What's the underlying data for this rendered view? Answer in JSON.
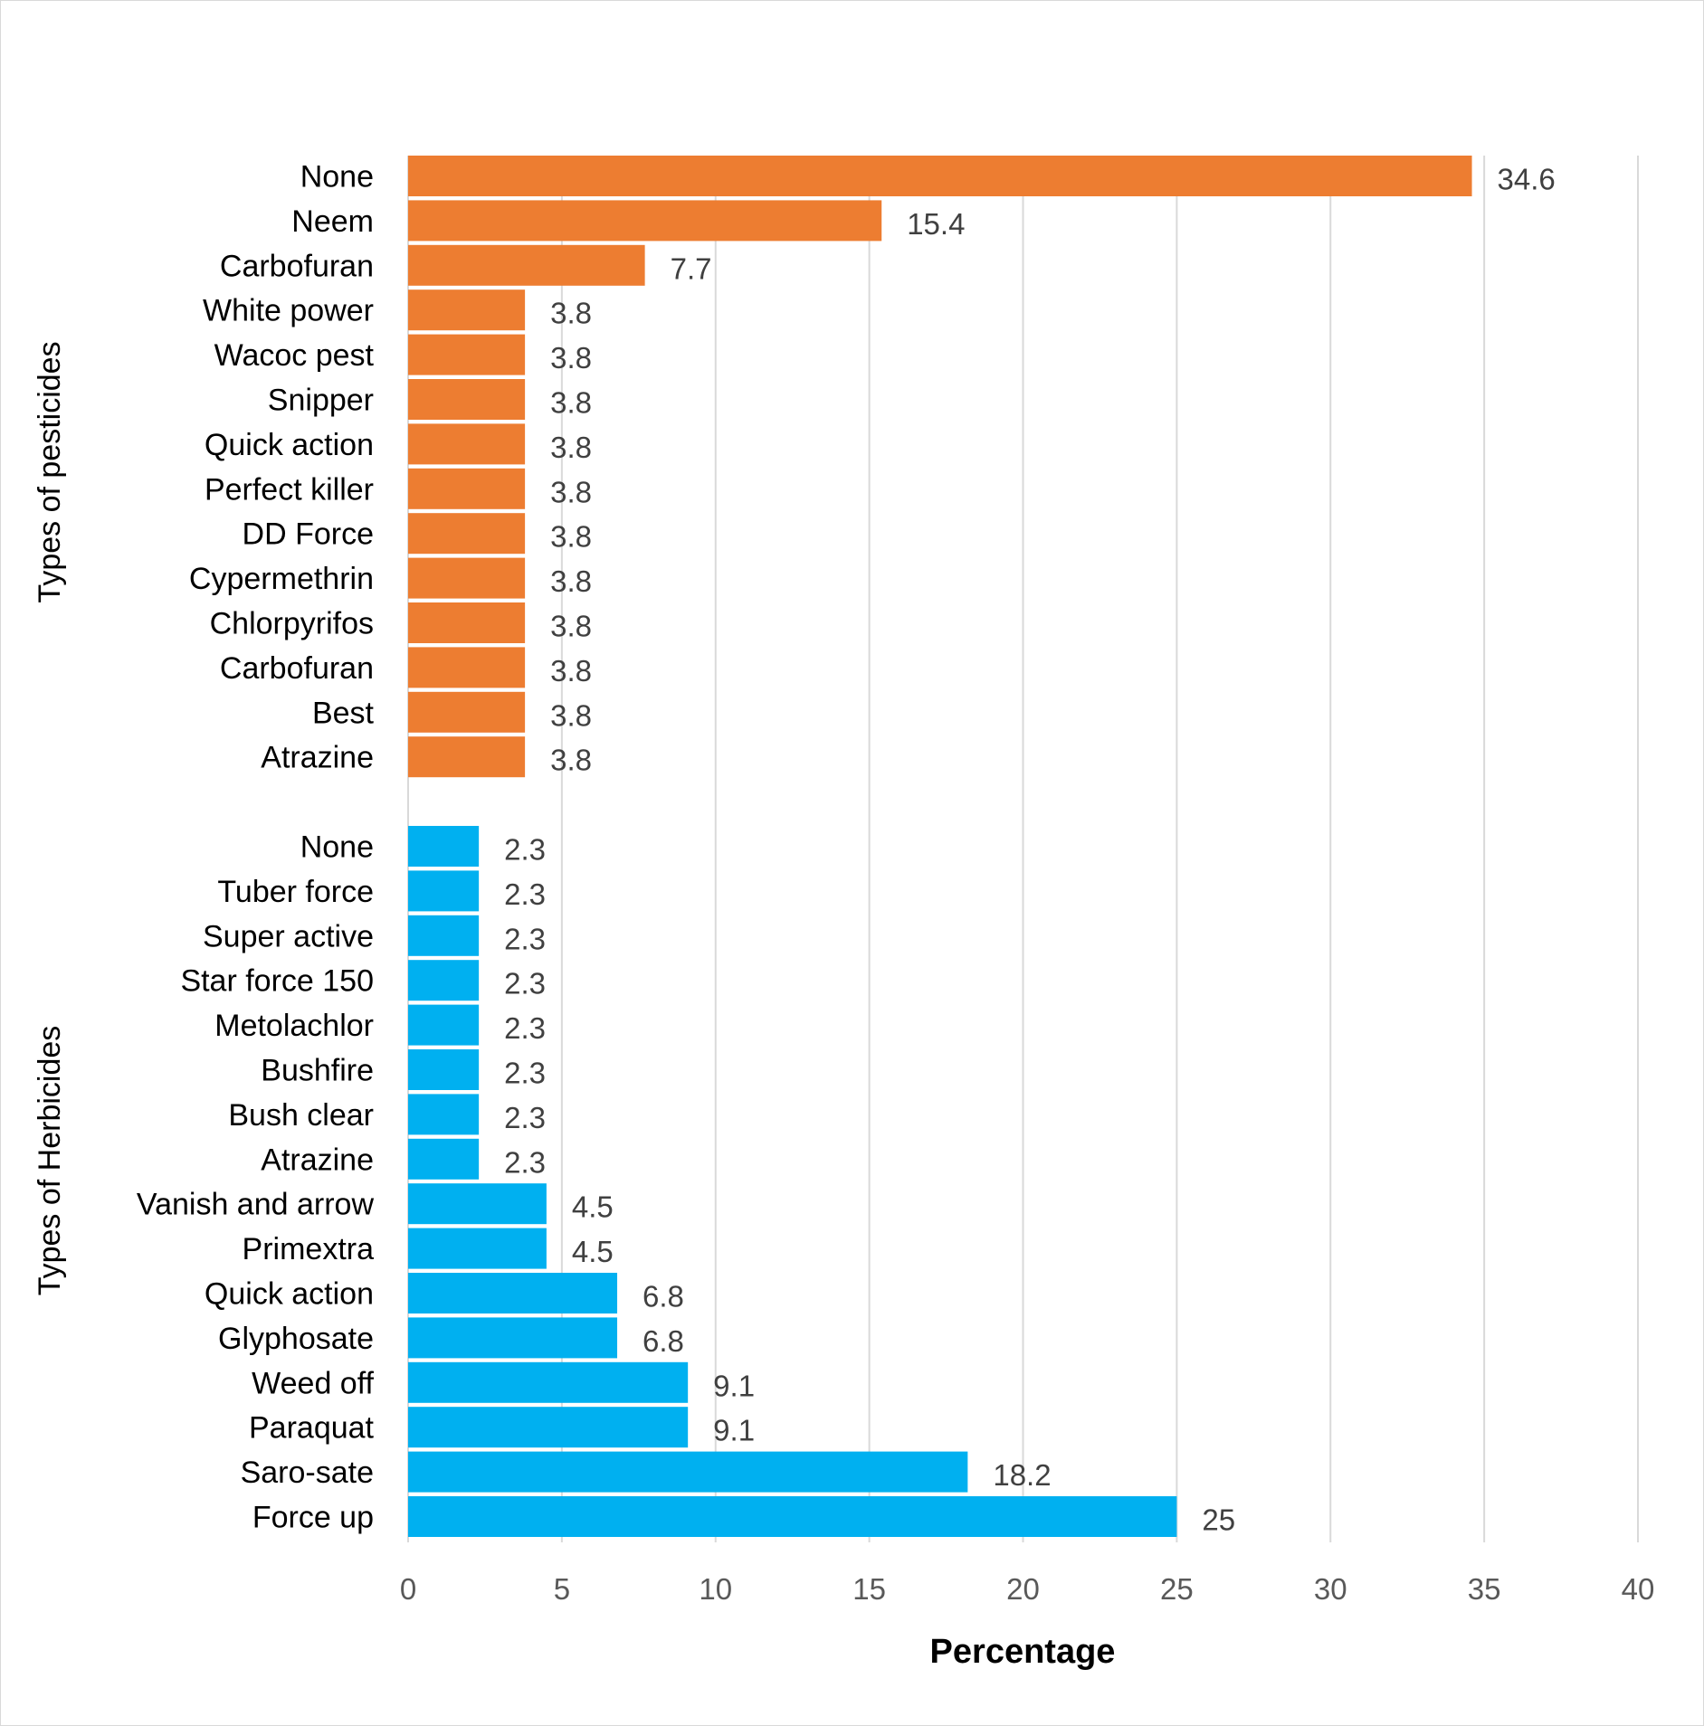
{
  "chart_data": {
    "type": "bar",
    "orientation": "horizontal",
    "xlabel": "Percentage",
    "xlim": [
      0,
      40
    ],
    "x_ticks": [
      "0",
      "5",
      "10",
      "15",
      "20",
      "25",
      "30",
      "35",
      "40"
    ],
    "grid": true,
    "groups": [
      {
        "name": "Types of pesticides",
        "color": "#ED7D31",
        "categories": [
          "None",
          "Neem",
          "Carbofuran",
          "White power",
          "Wacoc pest",
          "Snipper",
          "Quick action",
          "Perfect killer",
          "DD Force",
          "Cypermethrin",
          "Chlorpyrifos",
          "Carbofuran",
          "Best",
          "Atrazine"
        ],
        "values": [
          34.6,
          15.4,
          7.7,
          3.8,
          3.8,
          3.8,
          3.8,
          3.8,
          3.8,
          3.8,
          3.8,
          3.8,
          3.8,
          3.8
        ],
        "value_labels": [
          "34.6",
          "15.4",
          "7.7",
          "3.8",
          "3.8",
          "3.8",
          "3.8",
          "3.8",
          "3.8",
          "3.8",
          "3.8",
          "3.8",
          "3.8",
          "3.8"
        ]
      },
      {
        "name": "Types of Herbicides",
        "color": "#00B0F0",
        "categories": [
          "None",
          "Tuber force",
          "Super active",
          "Star force 150",
          "Metolachlor",
          "Bushfire",
          "Bush clear",
          "Atrazine",
          "Vanish and arrow",
          "Primextra",
          "Quick action",
          "Glyphosate",
          "Weed off",
          "Paraquat",
          "Saro-sate",
          "Force up"
        ],
        "values": [
          2.3,
          2.3,
          2.3,
          2.3,
          2.3,
          2.3,
          2.3,
          2.3,
          4.5,
          4.5,
          6.8,
          6.8,
          9.1,
          9.1,
          18.2,
          25
        ],
        "value_labels": [
          "2.3",
          "2.3",
          "2.3",
          "2.3",
          "2.3",
          "2.3",
          "2.3",
          "2.3",
          "4.5",
          "4.5",
          "6.8",
          "6.8",
          "9.1",
          "9.1",
          "18.2",
          "25"
        ]
      }
    ]
  }
}
